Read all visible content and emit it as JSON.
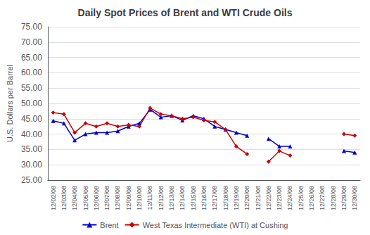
{
  "chart_data": {
    "type": "line",
    "title": "Daily Spot Prices of Brent and WTI Crude Oils",
    "ylabel": "U.S. Dollars per Barrel",
    "categories": [
      "12/02/08",
      "12/03/08",
      "12/04/08",
      "12/05/08",
      "12/06/08",
      "12/07/08",
      "12/08/08",
      "12/09/08",
      "12/10/08",
      "12/11/08",
      "12/12/08",
      "12/13/08",
      "12/14/08",
      "12/15/08",
      "12/16/08",
      "12/17/08",
      "12/18/08",
      "12/19/08",
      "12/20/08",
      "12/21/08",
      "12/22/08",
      "12/23/08",
      "12/24/08",
      "12/25/08",
      "12/26/08",
      "12/27/08",
      "12/28/08",
      "12/29/08",
      "12/30/08"
    ],
    "series": [
      {
        "name": "Brent",
        "color": "#0000CC",
        "marker": "triangle",
        "line_style": "solid",
        "values": [
          44.3,
          43.5,
          38.0,
          40.0,
          40.5,
          40.5,
          41.0,
          42.5,
          43.5,
          48.0,
          45.5,
          46.0,
          44.5,
          46.0,
          45.0,
          42.5,
          41.5,
          40.5,
          39.5,
          null,
          38.5,
          36.0,
          36.0,
          null,
          null,
          null,
          null,
          34.5,
          34.0
        ]
      },
      {
        "name": "West Texas Intermediate (WTI) at Cushing",
        "color": "#CC0000",
        "marker": "diamond",
        "line_style": "solid",
        "values": [
          47.0,
          46.5,
          40.5,
          43.5,
          42.5,
          43.5,
          42.5,
          43.0,
          42.5,
          48.5,
          46.5,
          46.0,
          45.0,
          45.5,
          44.5,
          44.0,
          41.5,
          36.0,
          33.5,
          null,
          31.0,
          34.5,
          33.0,
          null,
          null,
          null,
          null,
          40.0,
          39.5
        ]
      }
    ],
    "ylim": [
      25.0,
      75.0
    ],
    "yticks": [
      {
        "value": 25.0,
        "label": "25.00"
      },
      {
        "value": 30.0,
        "label": "30.00"
      },
      {
        "value": 35.0,
        "label": "35.00"
      },
      {
        "value": 40.0,
        "label": "40.00"
      },
      {
        "value": 45.0,
        "label": "45.00"
      },
      {
        "value": 50.0,
        "label": "50.00"
      },
      {
        "value": 55.0,
        "label": "55.00"
      },
      {
        "value": 60.0,
        "label": "60.00"
      },
      {
        "value": 65.0,
        "label": "65.00"
      },
      {
        "value": 70.0,
        "label": "70.00"
      },
      {
        "value": 75.0,
        "label": "75.00"
      }
    ],
    "grid": true,
    "legend": "bottom"
  }
}
